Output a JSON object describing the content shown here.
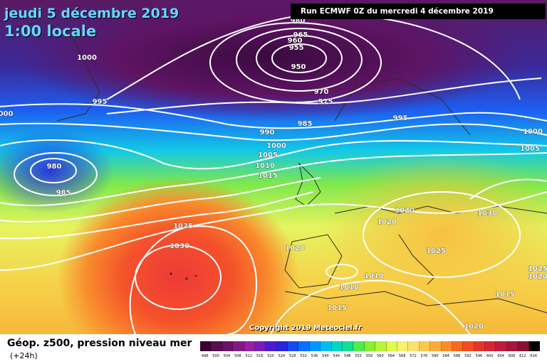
{
  "header": {
    "date_title": "jeudi 5 décembre 2019",
    "time_title": "1:00 locale",
    "run_info": "Run ECMWF 0Z du mercredi 4 décembre 2019"
  },
  "map": {
    "copyright": "Copyright 2019 Meteociel.fr",
    "isobar_color": "#ffffff",
    "isobar_labels": [
      {
        "id": "hpa-980-a",
        "value": "980"
      },
      {
        "id": "hpa-965",
        "value": "965"
      },
      {
        "id": "hpa-960",
        "value": "960"
      },
      {
        "id": "hpa-955",
        "value": "955"
      },
      {
        "id": "hpa-950",
        "value": "950"
      },
      {
        "id": "hpa-970",
        "value": "970"
      },
      {
        "id": "hpa-975",
        "value": "975"
      },
      {
        "id": "hpa-985-a",
        "value": "985"
      },
      {
        "id": "hpa-995-a",
        "value": "995"
      },
      {
        "id": "hpa-1000-a",
        "value": "1000"
      },
      {
        "id": "hpa-995-b",
        "value": "995"
      },
      {
        "id": "hpa-1000-b",
        "value": "000"
      },
      {
        "id": "hpa-990",
        "value": "990"
      },
      {
        "id": "hpa-1000-c",
        "value": "1000"
      },
      {
        "id": "hpa-1005-a",
        "value": "1005"
      },
      {
        "id": "hpa-1010-a",
        "value": "1010"
      },
      {
        "id": "hpa-1015-a",
        "value": "1015"
      },
      {
        "id": "hpa-980-b",
        "value": "980"
      },
      {
        "id": "hpa-985-b",
        "value": "985"
      },
      {
        "id": "hpa-1000-d",
        "value": "1000"
      },
      {
        "id": "hpa-1005-b",
        "value": "1005"
      },
      {
        "id": "hpa-1020-a",
        "value": "1020"
      },
      {
        "id": "hpa-1020-b",
        "value": "1020"
      },
      {
        "id": "hpa-1030-a",
        "value": "1030"
      },
      {
        "id": "hpa-1025-a",
        "value": "1025"
      },
      {
        "id": "hpa-1030-b",
        "value": "1030"
      },
      {
        "id": "hpa-1020-c",
        "value": "1020"
      },
      {
        "id": "hpa-1025-b",
        "value": "1025"
      },
      {
        "id": "hpa-1010-b",
        "value": "1010"
      },
      {
        "id": "hpa-1010-c",
        "value": "1010"
      },
      {
        "id": "hpa-1015-b",
        "value": "1015"
      },
      {
        "id": "hpa-1025-c",
        "value": "1025"
      },
      {
        "id": "hpa-1020-d",
        "value": "1020"
      },
      {
        "id": "hpa-1020-e",
        "value": "1020"
      },
      {
        "id": "hpa-1015-c",
        "value": "1015"
      },
      {
        "id": "hpa-1020-f",
        "value": "1020"
      }
    ]
  },
  "footer": {
    "title": "Géop. z500, pression niveau mer",
    "subtitle": "(+24h)"
  },
  "legend": {
    "ticks": [
      "496",
      "500",
      "504",
      "508",
      "512",
      "516",
      "520",
      "524",
      "528",
      "532",
      "536",
      "540",
      "544",
      "548",
      "552",
      "556",
      "560",
      "564",
      "568",
      "572",
      "576",
      "580",
      "584",
      "588",
      "592",
      "596",
      "600",
      "604",
      "608",
      "612",
      "616"
    ],
    "colors": [
      "#3a0032",
      "#540f4e",
      "#6c1068",
      "#821a86",
      "#9a1fa6",
      "#7a1fb6",
      "#4b1cd0",
      "#2a24e0",
      "#1848f0",
      "#0a70ff",
      "#0098ff",
      "#00bef0",
      "#00d6c0",
      "#10e090",
      "#50ea50",
      "#88f030",
      "#b8f43a",
      "#e0f850",
      "#f8f070",
      "#fce070",
      "#fcc850",
      "#fcac3c",
      "#fa8a2a",
      "#f8681e",
      "#f24c22",
      "#e6342c",
      "#d22838",
      "#bc1c3c",
      "#a4163c",
      "#8a1034",
      "#000000"
    ]
  }
}
